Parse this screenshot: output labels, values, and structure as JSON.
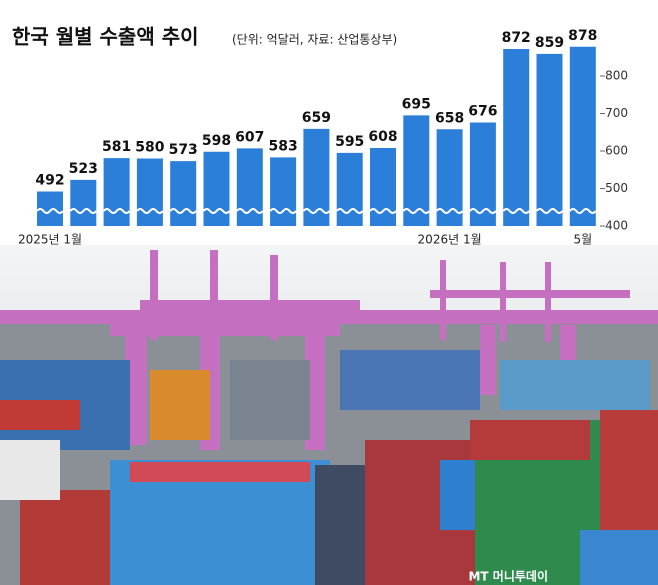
{
  "chart_data": {
    "type": "bar",
    "title": "한국 월별 수출액 추이",
    "subtitle": "(단위: 억달러, 자료: 산업통상부)",
    "categories": [
      "2025년 1월",
      null,
      null,
      null,
      null,
      null,
      null,
      null,
      null,
      null,
      null,
      null,
      "2026년 1월",
      null,
      null,
      null,
      "5월"
    ],
    "values": [
      492,
      523,
      581,
      580,
      573,
      598,
      607,
      583,
      659,
      595,
      608,
      695,
      658,
      676,
      872,
      859,
      878
    ],
    "color": "#2b7fd8",
    "ylim": [
      400,
      900
    ],
    "yticks": [
      400,
      500,
      600,
      700,
      800
    ],
    "watermark": "MT 머니투데이"
  }
}
